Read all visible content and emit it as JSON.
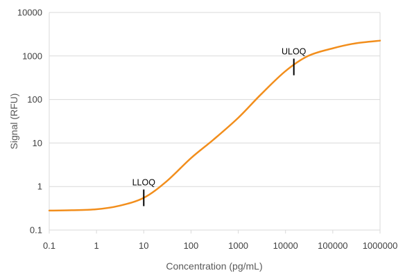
{
  "chart_data": {
    "type": "line",
    "title": "",
    "xlabel": "Concentration (pg/mL)",
    "ylabel": "Signal (RFU)",
    "x_scale": "log",
    "y_scale": "log",
    "xlim": [
      0.1,
      1000000
    ],
    "ylim": [
      0.1,
      10000
    ],
    "x_ticks": [
      "0.1",
      "1",
      "10",
      "100",
      "1000",
      "10000",
      "100000",
      "1000000"
    ],
    "y_ticks": [
      "0.1",
      "1",
      "10",
      "100",
      "1000",
      "10000"
    ],
    "grid": "horizontal",
    "legend": "none",
    "series": [
      {
        "color": "#f28e1c",
        "x": [
          0.1,
          0.3,
          1,
          3,
          10,
          30,
          100,
          300,
          1000,
          3000,
          10000,
          30000,
          100000,
          300000,
          1000000
        ],
        "y": [
          0.28,
          0.285,
          0.3,
          0.36,
          0.55,
          1.3,
          4.5,
          12,
          38,
          130,
          450,
          1000,
          1500,
          1950,
          2250
        ]
      }
    ],
    "annotations": [
      {
        "label": "LLOQ",
        "x": 10,
        "y": 0.55
      },
      {
        "label": "ULOQ",
        "x": 15000,
        "y": 560
      }
    ]
  },
  "colors": {
    "line": "#f28e1c",
    "gridline": "#d9d9d9",
    "marker": "#000000"
  }
}
